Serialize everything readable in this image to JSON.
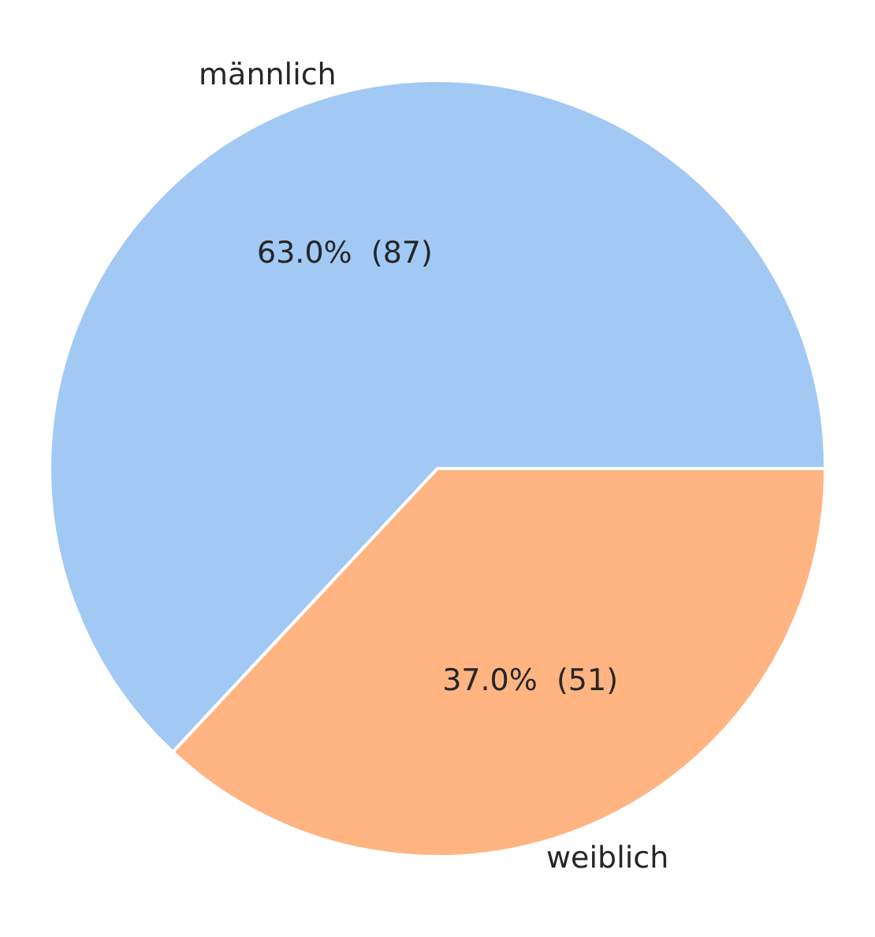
{
  "chart_data": {
    "type": "pie",
    "categories": [
      "männlich",
      "weiblich"
    ],
    "values": [
      87,
      51
    ],
    "colors": [
      "#a1c9f4",
      "#ffb482"
    ],
    "value_labels": [
      "63.0%  (87)",
      "37.0%  (51)"
    ],
    "legend": false
  }
}
